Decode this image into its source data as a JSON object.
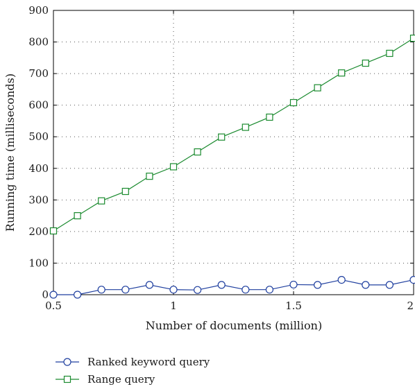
{
  "chart_data": {
    "type": "line",
    "xlabel": "Number of documents (million)",
    "ylabel": "Running time (milliseconds)",
    "xlim": [
      0.5,
      2
    ],
    "ylim": [
      0,
      900
    ],
    "x_ticks": [
      0.5,
      1,
      1.5,
      2
    ],
    "x_tick_labels": [
      "0.5",
      "1",
      "1.5",
      "2"
    ],
    "y_ticks": [
      0,
      100,
      200,
      300,
      400,
      500,
      600,
      700,
      800,
      900
    ],
    "y_tick_labels": [
      "0",
      "100",
      "200",
      "300",
      "400",
      "500",
      "600",
      "700",
      "800",
      "900"
    ],
    "grid": "dotted",
    "legend_position": "bottom",
    "x": [
      0.5,
      0.6,
      0.7,
      0.8,
      0.9,
      1.0,
      1.1,
      1.2,
      1.3,
      1.4,
      1.5,
      1.6,
      1.7,
      1.8,
      1.9,
      2.0
    ],
    "series": [
      {
        "name": "Ranked keyword query",
        "color": "#1f3f9f",
        "marker": "circle",
        "values": [
          0,
          0,
          16,
          16,
          31,
          16,
          15,
          31,
          16,
          16,
          32,
          31,
          47,
          31,
          31,
          47
        ]
      },
      {
        "name": "Range query",
        "color": "#1a8a2e",
        "marker": "square",
        "values": [
          202,
          250,
          297,
          327,
          375,
          405,
          452,
          499,
          530,
          562,
          608,
          655,
          702,
          733,
          764,
          812
        ]
      }
    ]
  }
}
